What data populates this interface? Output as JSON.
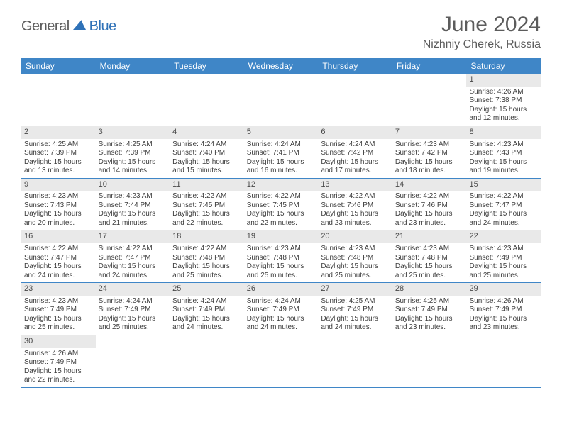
{
  "brand": {
    "part1": "General",
    "part2": "Blue",
    "sail_color": "#2f72b8"
  },
  "header": {
    "title": "June 2024",
    "location": "Nizhniy Cherek, Russia"
  },
  "styles": {
    "header_bg": "#3f86c7",
    "daynum_bg": "#e9e9e9",
    "row_border": "#3f86c7",
    "text_color": "#3d3d3d",
    "title_color": "#5c5c5c"
  },
  "calendar": {
    "day_headers": [
      "Sunday",
      "Monday",
      "Tuesday",
      "Wednesday",
      "Thursday",
      "Friday",
      "Saturday"
    ],
    "weeks": [
      [
        null,
        null,
        null,
        null,
        null,
        null,
        {
          "n": "1",
          "sr": "Sunrise: 4:26 AM",
          "ss": "Sunset: 7:38 PM",
          "dl1": "Daylight: 15 hours",
          "dl2": "and 12 minutes."
        }
      ],
      [
        {
          "n": "2",
          "sr": "Sunrise: 4:25 AM",
          "ss": "Sunset: 7:39 PM",
          "dl1": "Daylight: 15 hours",
          "dl2": "and 13 minutes."
        },
        {
          "n": "3",
          "sr": "Sunrise: 4:25 AM",
          "ss": "Sunset: 7:39 PM",
          "dl1": "Daylight: 15 hours",
          "dl2": "and 14 minutes."
        },
        {
          "n": "4",
          "sr": "Sunrise: 4:24 AM",
          "ss": "Sunset: 7:40 PM",
          "dl1": "Daylight: 15 hours",
          "dl2": "and 15 minutes."
        },
        {
          "n": "5",
          "sr": "Sunrise: 4:24 AM",
          "ss": "Sunset: 7:41 PM",
          "dl1": "Daylight: 15 hours",
          "dl2": "and 16 minutes."
        },
        {
          "n": "6",
          "sr": "Sunrise: 4:24 AM",
          "ss": "Sunset: 7:42 PM",
          "dl1": "Daylight: 15 hours",
          "dl2": "and 17 minutes."
        },
        {
          "n": "7",
          "sr": "Sunrise: 4:23 AM",
          "ss": "Sunset: 7:42 PM",
          "dl1": "Daylight: 15 hours",
          "dl2": "and 18 minutes."
        },
        {
          "n": "8",
          "sr": "Sunrise: 4:23 AM",
          "ss": "Sunset: 7:43 PM",
          "dl1": "Daylight: 15 hours",
          "dl2": "and 19 minutes."
        }
      ],
      [
        {
          "n": "9",
          "sr": "Sunrise: 4:23 AM",
          "ss": "Sunset: 7:43 PM",
          "dl1": "Daylight: 15 hours",
          "dl2": "and 20 minutes."
        },
        {
          "n": "10",
          "sr": "Sunrise: 4:23 AM",
          "ss": "Sunset: 7:44 PM",
          "dl1": "Daylight: 15 hours",
          "dl2": "and 21 minutes."
        },
        {
          "n": "11",
          "sr": "Sunrise: 4:22 AM",
          "ss": "Sunset: 7:45 PM",
          "dl1": "Daylight: 15 hours",
          "dl2": "and 22 minutes."
        },
        {
          "n": "12",
          "sr": "Sunrise: 4:22 AM",
          "ss": "Sunset: 7:45 PM",
          "dl1": "Daylight: 15 hours",
          "dl2": "and 22 minutes."
        },
        {
          "n": "13",
          "sr": "Sunrise: 4:22 AM",
          "ss": "Sunset: 7:46 PM",
          "dl1": "Daylight: 15 hours",
          "dl2": "and 23 minutes."
        },
        {
          "n": "14",
          "sr": "Sunrise: 4:22 AM",
          "ss": "Sunset: 7:46 PM",
          "dl1": "Daylight: 15 hours",
          "dl2": "and 23 minutes."
        },
        {
          "n": "15",
          "sr": "Sunrise: 4:22 AM",
          "ss": "Sunset: 7:47 PM",
          "dl1": "Daylight: 15 hours",
          "dl2": "and 24 minutes."
        }
      ],
      [
        {
          "n": "16",
          "sr": "Sunrise: 4:22 AM",
          "ss": "Sunset: 7:47 PM",
          "dl1": "Daylight: 15 hours",
          "dl2": "and 24 minutes."
        },
        {
          "n": "17",
          "sr": "Sunrise: 4:22 AM",
          "ss": "Sunset: 7:47 PM",
          "dl1": "Daylight: 15 hours",
          "dl2": "and 24 minutes."
        },
        {
          "n": "18",
          "sr": "Sunrise: 4:22 AM",
          "ss": "Sunset: 7:48 PM",
          "dl1": "Daylight: 15 hours",
          "dl2": "and 25 minutes."
        },
        {
          "n": "19",
          "sr": "Sunrise: 4:23 AM",
          "ss": "Sunset: 7:48 PM",
          "dl1": "Daylight: 15 hours",
          "dl2": "and 25 minutes."
        },
        {
          "n": "20",
          "sr": "Sunrise: 4:23 AM",
          "ss": "Sunset: 7:48 PM",
          "dl1": "Daylight: 15 hours",
          "dl2": "and 25 minutes."
        },
        {
          "n": "21",
          "sr": "Sunrise: 4:23 AM",
          "ss": "Sunset: 7:48 PM",
          "dl1": "Daylight: 15 hours",
          "dl2": "and 25 minutes."
        },
        {
          "n": "22",
          "sr": "Sunrise: 4:23 AM",
          "ss": "Sunset: 7:49 PM",
          "dl1": "Daylight: 15 hours",
          "dl2": "and 25 minutes."
        }
      ],
      [
        {
          "n": "23",
          "sr": "Sunrise: 4:23 AM",
          "ss": "Sunset: 7:49 PM",
          "dl1": "Daylight: 15 hours",
          "dl2": "and 25 minutes."
        },
        {
          "n": "24",
          "sr": "Sunrise: 4:24 AM",
          "ss": "Sunset: 7:49 PM",
          "dl1": "Daylight: 15 hours",
          "dl2": "and 25 minutes."
        },
        {
          "n": "25",
          "sr": "Sunrise: 4:24 AM",
          "ss": "Sunset: 7:49 PM",
          "dl1": "Daylight: 15 hours",
          "dl2": "and 24 minutes."
        },
        {
          "n": "26",
          "sr": "Sunrise: 4:24 AM",
          "ss": "Sunset: 7:49 PM",
          "dl1": "Daylight: 15 hours",
          "dl2": "and 24 minutes."
        },
        {
          "n": "27",
          "sr": "Sunrise: 4:25 AM",
          "ss": "Sunset: 7:49 PM",
          "dl1": "Daylight: 15 hours",
          "dl2": "and 24 minutes."
        },
        {
          "n": "28",
          "sr": "Sunrise: 4:25 AM",
          "ss": "Sunset: 7:49 PM",
          "dl1": "Daylight: 15 hours",
          "dl2": "and 23 minutes."
        },
        {
          "n": "29",
          "sr": "Sunrise: 4:26 AM",
          "ss": "Sunset: 7:49 PM",
          "dl1": "Daylight: 15 hours",
          "dl2": "and 23 minutes."
        }
      ],
      [
        {
          "n": "30",
          "sr": "Sunrise: 4:26 AM",
          "ss": "Sunset: 7:49 PM",
          "dl1": "Daylight: 15 hours",
          "dl2": "and 22 minutes."
        },
        null,
        null,
        null,
        null,
        null,
        null
      ]
    ]
  }
}
